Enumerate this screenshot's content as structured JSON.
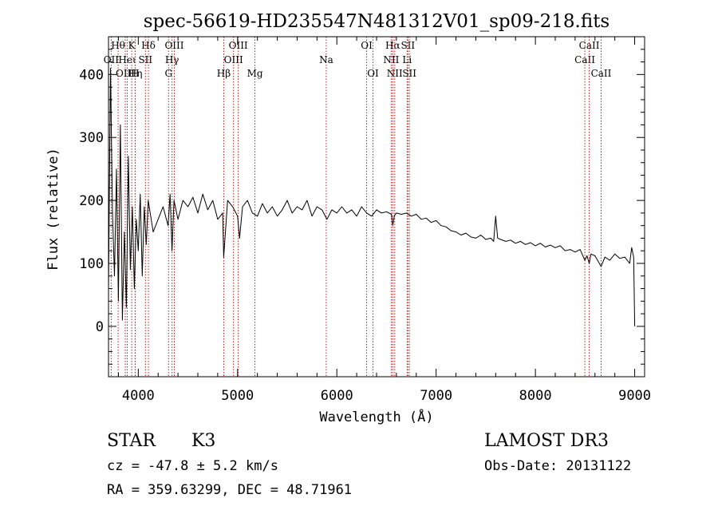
{
  "chart_data": {
    "type": "line",
    "title": "spec-56619-HD235547N481312V01_sp09-218.fits",
    "xlabel": "Wavelength (Å)",
    "ylabel": "Flux (relative)",
    "xlim": [
      3700,
      9100
    ],
    "ylim": [
      -80,
      460
    ],
    "xticks": [
      4000,
      5000,
      6000,
      7000,
      8000,
      9000
    ],
    "yticks": [
      0,
      100,
      200,
      300,
      400
    ],
    "line_color": "#000000",
    "marker_color": "#b22222",
    "series": [
      {
        "name": "flux",
        "x": [
          3700,
          3720,
          3740,
          3760,
          3780,
          3800,
          3820,
          3840,
          3860,
          3880,
          3900,
          3920,
          3940,
          3960,
          3980,
          4000,
          4020,
          4040,
          4060,
          4080,
          4100,
          4150,
          4200,
          4250,
          4300,
          4320,
          4340,
          4360,
          4400,
          4450,
          4500,
          4550,
          4600,
          4650,
          4700,
          4750,
          4800,
          4850,
          4860,
          4900,
          4950,
          5000,
          5020,
          5050,
          5100,
          5150,
          5200,
          5250,
          5300,
          5350,
          5400,
          5450,
          5500,
          5550,
          5600,
          5650,
          5700,
          5750,
          5800,
          5850,
          5900,
          5950,
          6000,
          6050,
          6100,
          6150,
          6200,
          6250,
          6300,
          6350,
          6400,
          6450,
          6500,
          6550,
          6563,
          6580,
          6600,
          6650,
          6700,
          6750,
          6800,
          6850,
          6900,
          6950,
          7000,
          7050,
          7100,
          7150,
          7200,
          7250,
          7300,
          7350,
          7400,
          7450,
          7500,
          7550,
          7580,
          7600,
          7620,
          7650,
          7700,
          7750,
          7800,
          7850,
          7900,
          7950,
          8000,
          8050,
          8100,
          8150,
          8200,
          8250,
          8300,
          8350,
          8400,
          8450,
          8498,
          8520,
          8542,
          8560,
          8600,
          8662,
          8700,
          8750,
          8800,
          8850,
          8900,
          8950,
          8970,
          8990,
          9000
        ],
        "values": [
          60,
          410,
          180,
          80,
          250,
          40,
          320,
          10,
          150,
          30,
          270,
          90,
          190,
          60,
          170,
          120,
          210,
          80,
          190,
          130,
          200,
          150,
          170,
          190,
          160,
          210,
          120,
          200,
          170,
          200,
          190,
          205,
          180,
          210,
          185,
          200,
          170,
          180,
          110,
          200,
          190,
          175,
          140,
          190,
          200,
          180,
          175,
          195,
          180,
          190,
          175,
          185,
          200,
          180,
          190,
          185,
          200,
          175,
          190,
          185,
          170,
          185,
          180,
          190,
          180,
          185,
          175,
          190,
          180,
          175,
          185,
          180,
          182,
          178,
          160,
          176,
          180,
          178,
          180,
          175,
          178,
          170,
          172,
          165,
          168,
          160,
          158,
          152,
          150,
          145,
          148,
          142,
          140,
          145,
          138,
          140,
          135,
          175,
          140,
          138,
          135,
          137,
          132,
          135,
          130,
          133,
          128,
          132,
          126,
          129,
          125,
          128,
          120,
          122,
          118,
          122,
          105,
          112,
          100,
          115,
          112,
          95,
          110,
          105,
          115,
          108,
          110,
          100,
          125,
          110,
          0
        ]
      }
    ],
    "line_markers": [
      {
        "label": "OII",
        "wavelength": 3727,
        "row": 2
      },
      {
        "label": "Hθ",
        "wavelength": 3797,
        "row": 1
      },
      {
        "label": "OIII",
        "wavelength": 3869,
        "row": 3
      },
      {
        "label": "Heι",
        "wavelength": 3889,
        "row": 2
      },
      {
        "label": "K",
        "wavelength": 3934,
        "row": 1
      },
      {
        "label": "Hη",
        "wavelength": 3970,
        "row": 3
      },
      {
        "label": "H",
        "wavelength": 3968,
        "row": 3
      },
      {
        "label": "SII",
        "wavelength": 4072,
        "row": 2
      },
      {
        "label": "Hδ",
        "wavelength": 4102,
        "row": 1
      },
      {
        "label": "G",
        "wavelength": 4305,
        "row": 3
      },
      {
        "label": "Hγ",
        "wavelength": 4340,
        "row": 2
      },
      {
        "label": "OIII",
        "wavelength": 4363,
        "row": 1
      },
      {
        "label": "Hβ",
        "wavelength": 4861,
        "row": 3
      },
      {
        "label": "OIII",
        "wavelength": 4959,
        "row": 2
      },
      {
        "label": "OIII",
        "wavelength": 5007,
        "row": 1
      },
      {
        "label": "Mg",
        "wavelength": 5175,
        "row": 3
      },
      {
        "label": "Na",
        "wavelength": 5893,
        "row": 2
      },
      {
        "label": "OI",
        "wavelength": 6300,
        "row": 1
      },
      {
        "label": "OI",
        "wavelength": 6364,
        "row": 3
      },
      {
        "label": "NII",
        "wavelength": 6548,
        "row": 2
      },
      {
        "label": "Hα",
        "wavelength": 6563,
        "row": 1
      },
      {
        "label": "NII",
        "wavelength": 6583,
        "row": 3
      },
      {
        "label": "Li",
        "wavelength": 6708,
        "row": 2
      },
      {
        "label": "SII",
        "wavelength": 6716,
        "row": 1
      },
      {
        "label": "SII",
        "wavelength": 6731,
        "row": 3
      },
      {
        "label": "CaII",
        "wavelength": 8498,
        "row": 2
      },
      {
        "label": "CaII",
        "wavelength": 8542,
        "row": 1
      },
      {
        "label": "CaII",
        "wavelength": 8662,
        "row": 3
      }
    ]
  },
  "info": {
    "object_class": "STAR",
    "subclass": "K3",
    "survey": "LAMOST DR3",
    "cz": "cz = -47.8 ± 5.2 km/s",
    "obs_date": "Obs-Date: 20131122",
    "coords": "RA = 359.63299, DEC =  48.71961"
  }
}
